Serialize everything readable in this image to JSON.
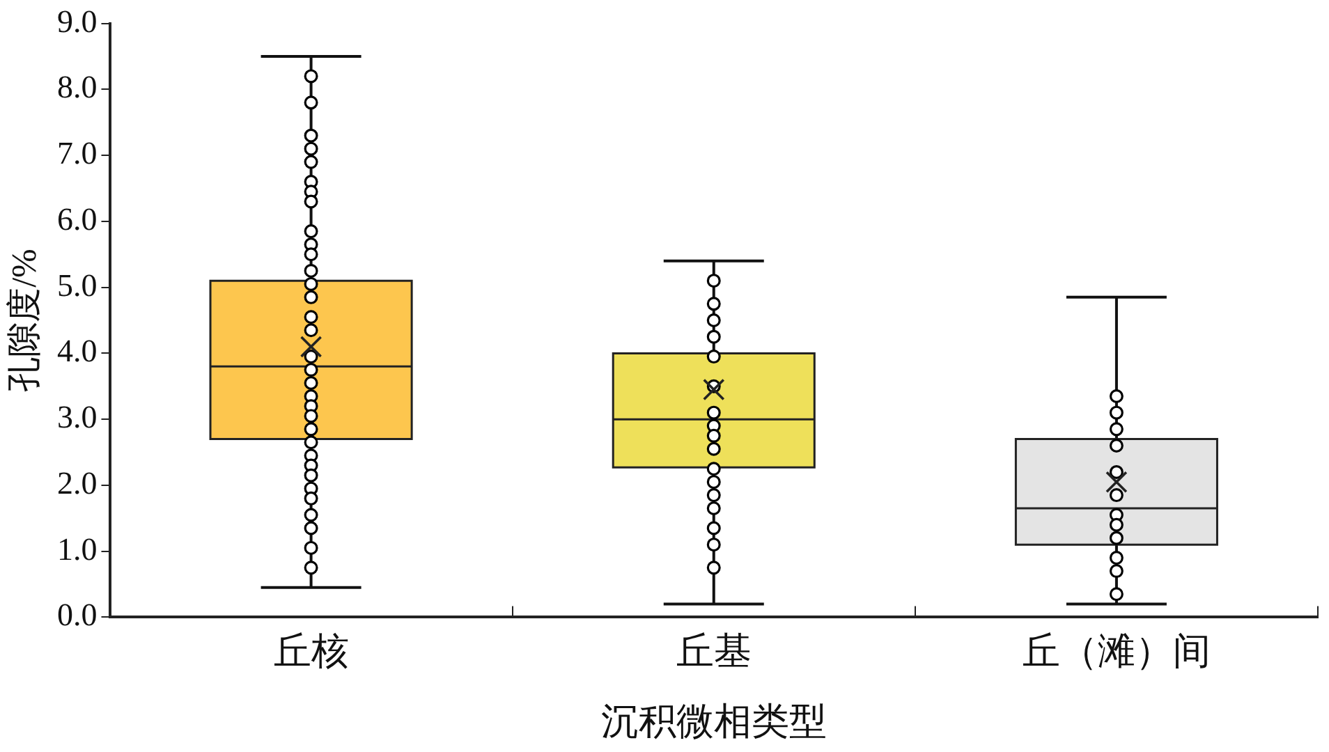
{
  "chart_data": {
    "type": "box",
    "xlabel": "沉积微相类型",
    "ylabel": "孔隙度/%",
    "categories": [
      "丘核",
      "丘基",
      "丘（滩）间"
    ],
    "colors": [
      "#fdc64e",
      "#eee05a",
      "#e4e4e4"
    ],
    "boxes": [
      {
        "low": 0.45,
        "q1": 2.7,
        "median": 3.8,
        "q3": 5.1,
        "high": 8.5,
        "mean": 4.1
      },
      {
        "low": 0.2,
        "q1": 2.27,
        "median": 3.0,
        "q3": 4.0,
        "high": 5.4,
        "mean": 3.45
      },
      {
        "low": 0.2,
        "q1": 1.1,
        "median": 1.65,
        "q3": 2.7,
        "high": 4.85,
        "mean": 2.05
      }
    ],
    "series": [
      {
        "type": "scatter",
        "color": "#000000",
        "marker": "circle",
        "x": [
          "丘核",
          "丘核",
          "丘核",
          "丘核",
          "丘核",
          "丘核",
          "丘核",
          "丘核",
          "丘核",
          "丘核",
          "丘核",
          "丘核",
          "丘核",
          "丘核",
          "丘核",
          "丘核",
          "丘核",
          "丘核",
          "丘核",
          "丘核",
          "丘核",
          "丘核",
          "丘核",
          "丘核",
          "丘核",
          "丘核",
          "丘核",
          "丘核",
          "丘核",
          "丘核",
          "丘核",
          "丘核",
          "丘核",
          "丘基",
          "丘基",
          "丘基",
          "丘基",
          "丘基",
          "丘基",
          "丘基",
          "丘基",
          "丘基",
          "丘基",
          "丘基",
          "丘基",
          "丘基",
          "丘基",
          "丘基",
          "丘基",
          "丘基",
          "丘（滩）间",
          "丘（滩）间",
          "丘（滩）间",
          "丘（滩）间",
          "丘（滩）间",
          "丘（滩）间",
          "丘（滩）间",
          "丘（滩）间",
          "丘（滩）间",
          "丘（滩）间",
          "丘（滩）间",
          "丘（滩）间"
        ],
        "values": [
          8.2,
          7.8,
          7.3,
          7.1,
          6.9,
          6.6,
          6.45,
          6.3,
          5.85,
          5.65,
          5.5,
          5.25,
          5.05,
          4.85,
          4.55,
          4.35,
          3.95,
          3.75,
          3.55,
          3.35,
          3.2,
          3.05,
          2.85,
          2.65,
          2.45,
          2.3,
          2.15,
          1.95,
          1.8,
          1.55,
          1.35,
          1.05,
          0.75,
          5.1,
          4.75,
          4.5,
          4.25,
          3.95,
          3.5,
          3.1,
          2.9,
          2.75,
          2.55,
          2.25,
          2.05,
          1.85,
          1.65,
          1.35,
          1.1,
          0.75,
          3.35,
          3.1,
          2.85,
          2.6,
          2.2,
          1.85,
          1.55,
          1.4,
          1.2,
          0.9,
          0.7,
          0.35
        ]
      }
    ],
    "ylim": [
      0,
      9
    ],
    "yticks": [
      {
        "value": 0,
        "label": "0.0"
      },
      {
        "value": 1,
        "label": "1.0"
      },
      {
        "value": 2,
        "label": "2.0"
      },
      {
        "value": 3,
        "label": "3.0"
      },
      {
        "value": 4,
        "label": "4.0"
      },
      {
        "value": 5,
        "label": "5.0"
      },
      {
        "value": 6,
        "label": "6.0"
      },
      {
        "value": 7,
        "label": "7.0"
      },
      {
        "value": 8,
        "label": "8.0"
      },
      {
        "value": 9,
        "label": "9.0"
      }
    ]
  }
}
